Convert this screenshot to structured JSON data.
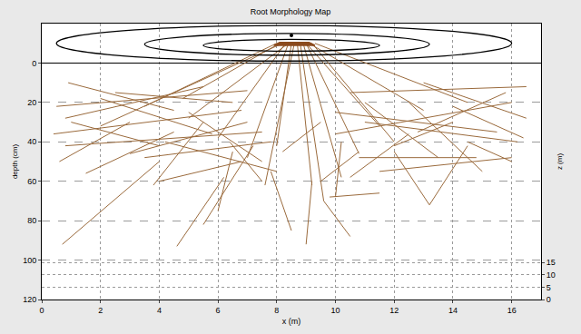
{
  "chart_data": {
    "type": "line",
    "title": "Root Morphology Map",
    "xlabel": "x (m)",
    "ylabel": "depth (cm)",
    "y2label": "z (m)",
    "xlim": [
      0,
      17
    ],
    "xticks": [
      0,
      2,
      4,
      6,
      8,
      10,
      12,
      14,
      16
    ],
    "ylim": [
      120,
      -20
    ],
    "yticks": [
      0,
      20,
      40,
      60,
      80,
      100,
      120
    ],
    "y2lim": [
      0,
      112
    ],
    "y2ticks": [
      0,
      5,
      10,
      15
    ],
    "grid": true,
    "color": "#9a6a3c",
    "contour_color": "#000000",
    "contours": [
      {
        "x": [
          0.5,
          16.0
        ],
        "depth": [
          -19,
          -1
        ]
      },
      {
        "x": [
          3.5,
          13.2
        ],
        "depth": [
          -15,
          -4
        ]
      },
      {
        "x": [
          5.5,
          11.5
        ],
        "depth": [
          -12,
          -6
        ]
      }
    ],
    "trunk": {
      "color": "#8b4a1c",
      "x": [
        7.9,
        9.3,
        9.1,
        8.1,
        7.9
      ],
      "values": [
        -9,
        -9,
        -10.5,
        -10.5,
        -9
      ]
    },
    "stem_point": {
      "x": 8.5,
      "value": -14
    },
    "roots": [
      {
        "x": [
          8.0,
          3.5
        ],
        "values": [
          -10,
          22
        ]
      },
      {
        "x": [
          8.1,
          4.8
        ],
        "values": [
          -10,
          18
        ]
      },
      {
        "x": [
          8.2,
          2.0
        ],
        "values": [
          -10,
          32
        ]
      },
      {
        "x": [
          8.3,
          6.0
        ],
        "values": [
          -10,
          38
        ]
      },
      {
        "x": [
          8.4,
          7.0
        ],
        "values": [
          -10,
          48
        ]
      },
      {
        "x": [
          8.5,
          8.0
        ],
        "values": [
          -10,
          42
        ]
      },
      {
        "x": [
          8.6,
          7.6
        ],
        "values": [
          -10,
          62
        ]
      },
      {
        "x": [
          8.7,
          9.2
        ],
        "values": [
          -10,
          62
        ]
      },
      {
        "x": [
          8.8,
          9.6
        ],
        "values": [
          -10,
          70
        ]
      },
      {
        "x": [
          8.9,
          10.2
        ],
        "values": [
          -10,
          58
        ]
      },
      {
        "x": [
          9.0,
          11.5
        ],
        "values": [
          -10,
          32
        ]
      },
      {
        "x": [
          9.1,
          13.0
        ],
        "values": [
          -10,
          24
        ]
      },
      {
        "x": [
          9.2,
          12.0
        ],
        "values": [
          -10,
          40
        ]
      },
      {
        "x": [
          9.0,
          10.8
        ],
        "values": [
          -10,
          46
        ]
      },
      {
        "x": [
          8.4,
          5.0
        ],
        "values": [
          -10,
          28
        ]
      },
      {
        "x": [
          9.3,
          14.5
        ],
        "values": [
          -10,
          20
        ]
      },
      {
        "x": [
          0.5,
          7.0
        ],
        "values": [
          22,
          14
        ]
      },
      {
        "x": [
          0.8,
          5.5
        ],
        "values": [
          28,
          12
        ]
      },
      {
        "x": [
          0.4,
          6.8
        ],
        "values": [
          36,
          24
        ]
      },
      {
        "x": [
          0.8,
          7.5
        ],
        "values": [
          42,
          35
        ]
      },
      {
        "x": [
          0.6,
          3.0
        ],
        "values": [
          50,
          30
        ]
      },
      {
        "x": [
          0.7,
          4.0
        ],
        "values": [
          92,
          50
        ]
      },
      {
        "x": [
          0.9,
          4.5
        ],
        "values": [
          10,
          24
        ]
      },
      {
        "x": [
          2.0,
          5.8
        ],
        "values": [
          18,
          36
        ]
      },
      {
        "x": [
          1.0,
          4.0
        ],
        "values": [
          30,
          42
        ]
      },
      {
        "x": [
          3.0,
          7.0
        ],
        "values": [
          46,
          30
        ]
      },
      {
        "x": [
          3.8,
          5.5
        ],
        "values": [
          62,
          30
        ]
      },
      {
        "x": [
          4.6,
          6.2
        ],
        "values": [
          93,
          58
        ]
      },
      {
        "x": [
          5.5,
          7.2
        ],
        "values": [
          82,
          42
        ]
      },
      {
        "x": [
          6.0,
          6.5
        ],
        "values": [
          75,
          45
        ]
      },
      {
        "x": [
          3.5,
          7.8
        ],
        "values": [
          48,
          40
        ]
      },
      {
        "x": [
          4.2,
          8.0
        ],
        "values": [
          40,
          55
        ]
      },
      {
        "x": [
          2.5,
          6.5
        ],
        "values": [
          15,
          20
        ]
      },
      {
        "x": [
          5.0,
          7.5
        ],
        "values": [
          25,
          50
        ]
      },
      {
        "x": [
          6.4,
          7.5
        ],
        "values": [
          40,
          60
        ]
      },
      {
        "x": [
          1.5,
          4.5
        ],
        "values": [
          56,
          35
        ]
      },
      {
        "x": [
          4.0,
          6.8
        ],
        "values": [
          60,
          50
        ]
      },
      {
        "x": [
          7.8,
          8.5
        ],
        "values": [
          55,
          85
        ]
      },
      {
        "x": [
          9.2,
          9.0
        ],
        "values": [
          60,
          92
        ]
      },
      {
        "x": [
          9.6,
          10.5
        ],
        "values": [
          70,
          88
        ]
      },
      {
        "x": [
          9.8,
          11.5
        ],
        "values": [
          68,
          66
        ]
      },
      {
        "x": [
          10.2,
          10.0
        ],
        "values": [
          40,
          68
        ]
      },
      {
        "x": [
          9.5,
          10.8
        ],
        "values": [
          60,
          45
        ]
      },
      {
        "x": [
          8.2,
          9.5
        ],
        "values": [
          45,
          30
        ]
      },
      {
        "x": [
          10.0,
          16.0
        ],
        "values": [
          36,
          20
        ]
      },
      {
        "x": [
          10.5,
          16.5
        ],
        "values": [
          15,
          12
        ]
      },
      {
        "x": [
          10.0,
          15.5
        ],
        "values": [
          25,
          35
        ]
      },
      {
        "x": [
          11.0,
          16.2
        ],
        "values": [
          30,
          40
        ]
      },
      {
        "x": [
          12.0,
          13.2
        ],
        "values": [
          45,
          72
        ]
      },
      {
        "x": [
          13.2,
          14.5
        ],
        "values": [
          72,
          42
        ]
      },
      {
        "x": [
          11.5,
          16.0
        ],
        "values": [
          55,
          48
        ]
      },
      {
        "x": [
          12.5,
          15.0
        ],
        "values": [
          20,
          55
        ]
      },
      {
        "x": [
          13.0,
          16.5
        ],
        "values": [
          10,
          28
        ]
      },
      {
        "x": [
          10.8,
          14.8
        ],
        "values": [
          48,
          48
        ]
      },
      {
        "x": [
          12.0,
          14.0
        ],
        "values": [
          42,
          30
        ]
      },
      {
        "x": [
          14.0,
          16.4
        ],
        "values": [
          22,
          38
        ]
      },
      {
        "x": [
          11.0,
          13.5
        ],
        "values": [
          20,
          48
        ]
      },
      {
        "x": [
          12.8,
          15.8
        ],
        "values": [
          35,
          15
        ]
      },
      {
        "x": [
          10.5,
          12.5
        ],
        "values": [
          58,
          36
        ]
      },
      {
        "x": [
          14.5,
          16.0
        ],
        "values": [
          40,
          50
        ]
      }
    ]
  }
}
